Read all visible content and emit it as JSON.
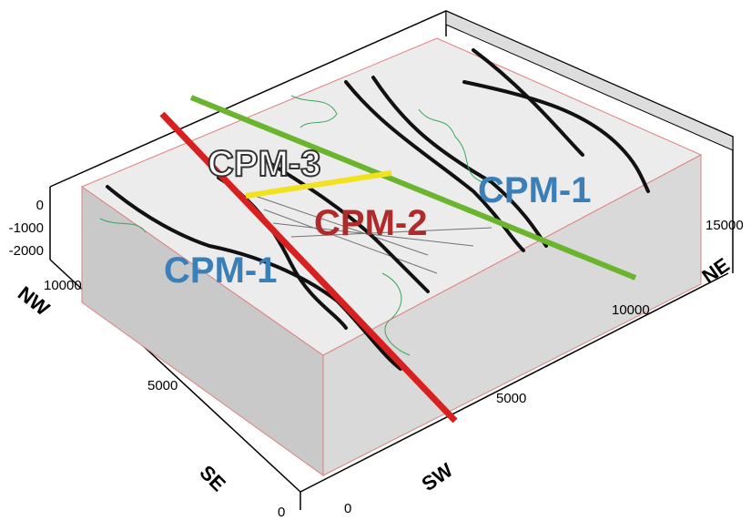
{
  "zones": [
    "CPM-3",
    "CPM-2",
    "CPM-1",
    "CPM-1"
  ],
  "depth_ticks": [
    "0",
    "-1000",
    "-2000"
  ],
  "nw_se_ticks": [
    "10000",
    "5000",
    "0"
  ],
  "sw_ne_ticks": [
    "0",
    "5000",
    "10000",
    "15000"
  ],
  "directions": {
    "nw": "NW",
    "se": "SE",
    "sw": "SW",
    "ne": "NE"
  }
}
